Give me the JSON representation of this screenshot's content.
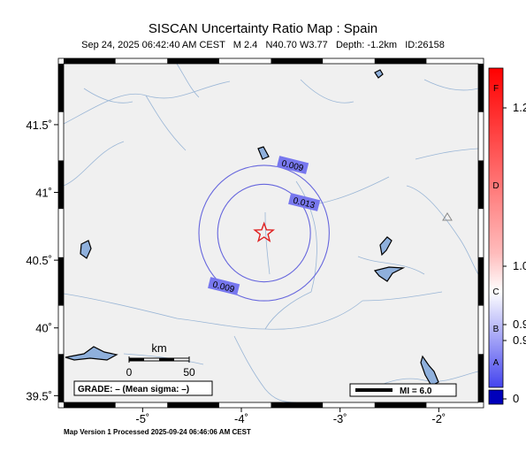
{
  "header": {
    "title": "SISCAN Uncertainty Ratio Map : Spain",
    "event_line": "Sep 24, 2025 06:42:40 AM CEST   M 2.4   N40.70 W3.77   Depth: -1.2km   ID:26158"
  },
  "map": {
    "lon_range": [
      -5.8,
      -1.6
    ],
    "lat_range": [
      39.45,
      41.95
    ],
    "lon_ticks": [
      {
        "value": -5,
        "label": "-5˚"
      },
      {
        "value": -4,
        "label": "-4˚"
      },
      {
        "value": -3,
        "label": "-3˚"
      },
      {
        "value": -2,
        "label": "-2˚"
      }
    ],
    "lat_ticks": [
      {
        "value": 41.5,
        "label": "41.5˚"
      },
      {
        "value": 41,
        "label": "41˚"
      },
      {
        "value": 40.5,
        "label": "40.5˚"
      },
      {
        "value": 40,
        "label": "40˚"
      },
      {
        "value": 39.5,
        "label": "39.5˚"
      }
    ],
    "epicenter": {
      "lon": -3.77,
      "lat": 40.7,
      "marker": "star-icon",
      "color": "#e02020"
    },
    "station": {
      "lon": -1.85,
      "lat": 40.83,
      "marker": "triangle-icon"
    },
    "contour_color": "#6666dd",
    "contour_label_bg": "#7777ee",
    "contours": [
      {
        "label": "0.009",
        "lon": -3.77,
        "lat": 40.7,
        "radius_deg_lon": 0.66,
        "radius_deg_lat": 0.5
      },
      {
        "label": "0.013",
        "lon": -3.77,
        "lat": 40.7,
        "radius_deg_lon": 0.47,
        "radius_deg_lat": 0.36
      }
    ],
    "scale_bar": {
      "title": "km",
      "labels": [
        "0",
        "50"
      ]
    },
    "grade_text": "GRADE: – (Mean sigma: –)",
    "mi_legend": "MI = 6.0"
  },
  "colorbar": {
    "grades": [
      "F",
      "D",
      "C",
      "B",
      "A"
    ],
    "values": [
      "1.2",
      "1.0",
      "0.9",
      "0.9",
      "0"
    ],
    "top_color": "#ff0000",
    "mid_color": "#ffffff",
    "bottom_color": "#4444ee",
    "cap_color": "#0000bb"
  },
  "footer": {
    "processed": "Map Version 1 Processed 2025-09-24 06:46:06 AM CEST"
  }
}
